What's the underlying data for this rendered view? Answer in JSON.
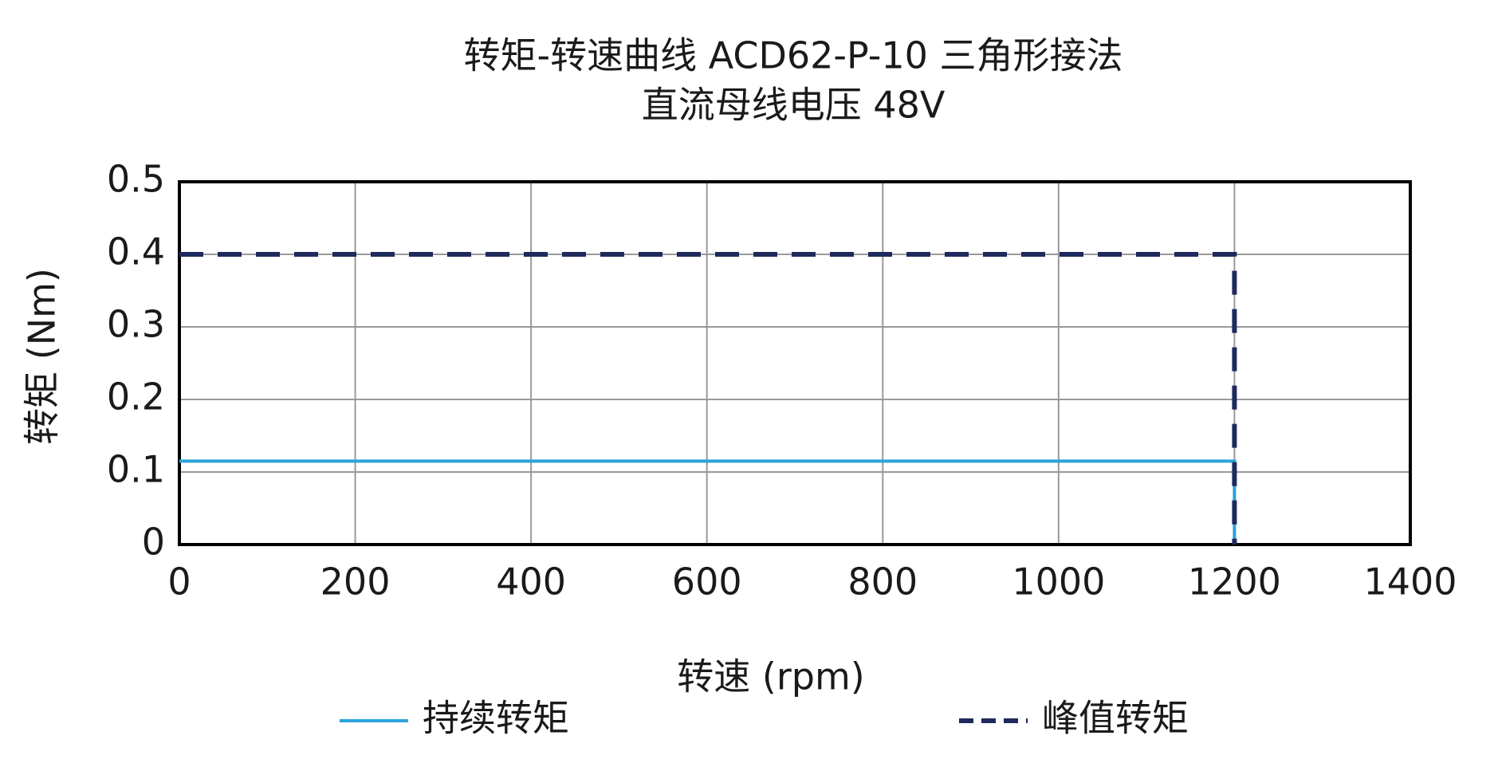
{
  "chart_data": {
    "type": "line",
    "title": "转矩-转速曲线 ACD62-P-10 三角形接法",
    "subtitle": "直流母线电压 48V",
    "x_label": "转速 (rpm)",
    "y_label": "转矩 (Nm)",
    "x": [
      0,
      1200,
      1200
    ],
    "series": [
      {
        "name": "持续转矩",
        "color": "#2aa3db",
        "linestyle": "solid",
        "values": [
          0.115,
          0.115,
          0
        ]
      },
      {
        "name": "峰值转矩",
        "color": "#1f2a5c",
        "linestyle": "dashed",
        "values": [
          0.4,
          0.4,
          0
        ]
      }
    ],
    "xlim": [
      0,
      1400
    ],
    "xticks": [
      0,
      200,
      400,
      600,
      800,
      1000,
      1200,
      1400
    ],
    "ylim": [
      0,
      0.5
    ],
    "yticks": [
      0,
      0.1,
      0.2,
      0.3,
      0.4,
      0.5
    ],
    "grid": true
  }
}
